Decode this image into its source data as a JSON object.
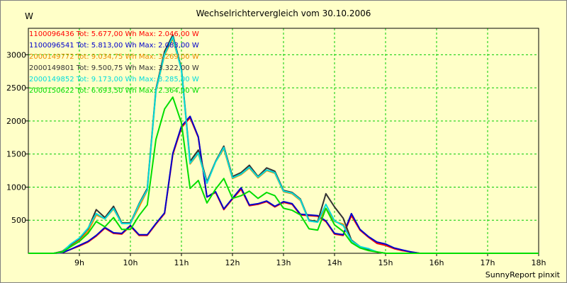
{
  "chart_data": {
    "type": "line",
    "title": "Wechselrichtervergleich vom 30.10.2006",
    "ylabel": "W",
    "footer": "SunnyReport pinxit",
    "xlim": [
      8.0,
      18.0
    ],
    "ylim": [
      0,
      3400
    ],
    "x_ticks": [
      9,
      10,
      11,
      12,
      13,
      14,
      15,
      16,
      17,
      18
    ],
    "x_tick_labels": [
      "9h",
      "10h",
      "11h",
      "12h",
      "13h",
      "14h",
      "15h",
      "16h",
      "17h",
      "18h"
    ],
    "y_ticks": [
      500,
      1000,
      1500,
      2000,
      2500,
      3000
    ],
    "y_tick_labels": [
      "500",
      "1000",
      "1500",
      "2000",
      "2500",
      "3000"
    ],
    "grid": true,
    "grid_color": "#00cc00",
    "background_color": "#ffffc8",
    "legend_position": "top-left",
    "x": [
      8.0,
      8.5,
      8.67,
      8.83,
      9.0,
      9.17,
      9.33,
      9.5,
      9.67,
      9.83,
      10.0,
      10.17,
      10.33,
      10.5,
      10.67,
      10.83,
      11.0,
      11.17,
      11.33,
      11.5,
      11.67,
      11.83,
      12.0,
      12.17,
      12.33,
      12.5,
      12.67,
      12.83,
      13.0,
      13.17,
      13.33,
      13.5,
      13.67,
      13.83,
      14.0,
      14.17,
      14.33,
      14.5,
      14.67,
      14.83,
      15.0,
      15.17,
      15.33,
      15.5,
      15.67,
      15.83,
      16.0,
      16.17,
      16.33,
      16.5,
      16.67,
      16.83,
      17.0,
      17.17,
      17.33,
      17.5,
      17.67,
      17.83,
      18.0
    ],
    "series": [
      {
        "name": "1100096436",
        "label": "1100096436 Tot: 5.677,00 Wh Max: 2.046,00 W",
        "color": "#ff0000",
        "values": [
          0,
          0,
          10,
          60,
          110,
          170,
          260,
          380,
          300,
          290,
          410,
          270,
          270,
          440,
          600,
          1490,
          1900,
          2050,
          1750,
          850,
          920,
          660,
          820,
          970,
          720,
          740,
          780,
          700,
          770,
          740,
          580,
          570,
          560,
          480,
          290,
          270,
          570,
          350,
          240,
          150,
          120,
          70,
          40,
          20,
          0,
          0,
          0,
          0,
          0,
          0,
          0,
          0,
          0,
          0,
          0,
          0,
          0,
          0,
          0
        ]
      },
      {
        "name": "1100096541",
        "label": "1100096541 Tot: 5.813,00 Wh Max: 2.083,00 W",
        "color": "#0000cc",
        "values": [
          0,
          0,
          10,
          60,
          120,
          180,
          270,
          390,
          310,
          300,
          420,
          280,
          280,
          450,
          610,
          1510,
          1920,
          2070,
          1760,
          850,
          930,
          670,
          830,
          990,
          730,
          750,
          790,
          710,
          780,
          750,
          590,
          580,
          570,
          490,
          300,
          280,
          600,
          360,
          250,
          170,
          140,
          80,
          50,
          20,
          0,
          0,
          0,
          0,
          0,
          0,
          0,
          0,
          0,
          0,
          0,
          0,
          0,
          0,
          0
        ]
      },
      {
        "name": "2000149772",
        "label": "2000149772 Tot: 9.034,75 Wh Max: 3.269,00 W",
        "color": "#ee8800",
        "values": [
          0,
          0,
          20,
          120,
          200,
          330,
          580,
          520,
          670,
          450,
          450,
          700,
          950,
          2450,
          3000,
          3240,
          2780,
          1350,
          1510,
          1060,
          1380,
          1580,
          1130,
          1190,
          1290,
          1140,
          1250,
          1210,
          930,
          900,
          800,
          490,
          470,
          680,
          480,
          440,
          190,
          90,
          50,
          20,
          0,
          0,
          0,
          0,
          0,
          0,
          0,
          0,
          0,
          0,
          0,
          0,
          0,
          0,
          0,
          0,
          0,
          0,
          0
        ]
      },
      {
        "name": "2000149801",
        "label": "2000149801 Tot: 9.500,75 Wh Max: 3.322,00 W",
        "color": "#333333",
        "values": [
          0,
          0,
          30,
          130,
          220,
          370,
          660,
          540,
          710,
          460,
          460,
          750,
          980,
          2480,
          3050,
          3300,
          2790,
          1390,
          1560,
          1080,
          1390,
          1620,
          1160,
          1220,
          1330,
          1160,
          1290,
          1240,
          950,
          920,
          820,
          500,
          480,
          900,
          700,
          530,
          200,
          100,
          60,
          20,
          0,
          0,
          0,
          0,
          0,
          0,
          0,
          0,
          0,
          0,
          0,
          0,
          0,
          0,
          0,
          0,
          0,
          0,
          0
        ]
      },
      {
        "name": "2000149852",
        "label": "2000149852 Tot: 9.173,00 Wh Max: 3.285,00 W",
        "color": "#00dddd",
        "values": [
          0,
          0,
          20,
          140,
          230,
          380,
          600,
          520,
          680,
          450,
          450,
          740,
          960,
          2460,
          3010,
          3270,
          2770,
          1360,
          1520,
          1060,
          1380,
          1600,
          1140,
          1200,
          1300,
          1150,
          1260,
          1220,
          940,
          910,
          810,
          490,
          470,
          740,
          490,
          420,
          190,
          100,
          70,
          20,
          0,
          0,
          0,
          0,
          0,
          0,
          0,
          0,
          0,
          0,
          0,
          0,
          0,
          0,
          0,
          0,
          0,
          0,
          0
        ]
      },
      {
        "name": "2000150622",
        "label": "2000150622 Tot: 6.693,50 Wh Max: 2.364,00 W",
        "color": "#00dd00",
        "values": [
          0,
          0,
          20,
          100,
          180,
          300,
          480,
          400,
          540,
          360,
          360,
          570,
          730,
          1720,
          2180,
          2360,
          1970,
          980,
          1100,
          760,
          970,
          1130,
          830,
          870,
          940,
          830,
          920,
          870,
          680,
          650,
          580,
          370,
          350,
          680,
          430,
          330,
          160,
          80,
          40,
          20,
          0,
          0,
          0,
          0,
          0,
          0,
          0,
          0,
          0,
          0,
          0,
          0,
          0,
          0,
          0,
          0,
          0,
          0,
          0
        ]
      }
    ]
  }
}
